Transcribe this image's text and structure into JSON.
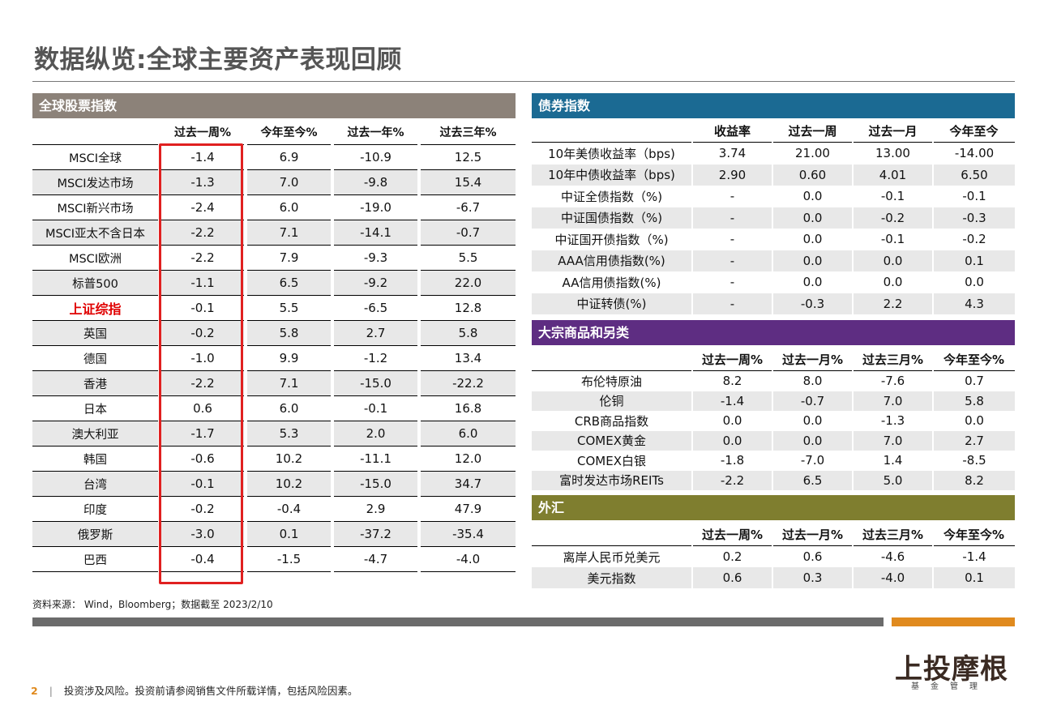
{
  "title": "数据纵览:全球主要资产表现回顾",
  "equity": {
    "header": "全球股票指数",
    "header_color": "#8c8279",
    "columns": [
      "过去一周%",
      "今年至今%",
      "过去一年%",
      "过去三年%"
    ],
    "rows": [
      {
        "name": "MSCI全球",
        "values": [
          "-1.4",
          "6.9",
          "-10.9",
          "12.5"
        ]
      },
      {
        "name": "MSCI发达市场",
        "values": [
          "-1.3",
          "7.0",
          "-9.8",
          "15.4"
        ]
      },
      {
        "name": "MSCI新兴市场",
        "values": [
          "-2.4",
          "6.0",
          "-19.0",
          "-6.7"
        ]
      },
      {
        "name": "MSCI亚太不含日本",
        "values": [
          "-2.2",
          "7.1",
          "-14.1",
          "-0.7"
        ]
      },
      {
        "name": "MSCI欧洲",
        "values": [
          "-2.2",
          "7.9",
          "-9.3",
          "5.5"
        ]
      },
      {
        "name": "标普500",
        "values": [
          "-1.1",
          "6.5",
          "-9.2",
          "22.0"
        ]
      },
      {
        "name": "上证综指",
        "values": [
          "-0.1",
          "5.5",
          "-6.5",
          "12.8"
        ]
      },
      {
        "name": "英国",
        "values": [
          "-0.2",
          "5.8",
          "2.7",
          "5.8"
        ]
      },
      {
        "name": "德国",
        "values": [
          "-1.0",
          "9.9",
          "-1.2",
          "13.4"
        ]
      },
      {
        "name": "香港",
        "values": [
          "-2.2",
          "7.1",
          "-15.0",
          "-22.2"
        ]
      },
      {
        "name": "日本",
        "values": [
          "0.6",
          "6.0",
          "-0.1",
          "16.8"
        ]
      },
      {
        "name": "澳大利亚",
        "values": [
          "-1.7",
          "5.3",
          "2.0",
          "6.0"
        ]
      },
      {
        "name": "韩国",
        "values": [
          "-0.6",
          "10.2",
          "-11.1",
          "12.0"
        ]
      },
      {
        "name": "台湾",
        "values": [
          "-0.1",
          "10.2",
          "-15.0",
          "34.7"
        ]
      },
      {
        "name": "印度",
        "values": [
          "-0.2",
          "-0.4",
          "2.9",
          "47.9"
        ]
      },
      {
        "name": "俄罗斯",
        "values": [
          "-3.0",
          "0.1",
          "-37.2",
          "-35.4"
        ]
      },
      {
        "name": "巴西",
        "values": [
          "-0.4",
          "-1.5",
          "-4.7",
          "-4.0"
        ]
      }
    ]
  },
  "bonds": {
    "header": "债券指数",
    "header_color": "#1b6a93",
    "columns": [
      "收益率",
      "过去一周",
      "过去一月",
      "今年至今"
    ],
    "rows": [
      {
        "name": "10年美债收益率（bps)",
        "values": [
          "3.74",
          "21.00",
          "13.00",
          "-14.00"
        ]
      },
      {
        "name": "10年中债收益率（bps)",
        "values": [
          "2.90",
          "0.60",
          "4.01",
          "6.50"
        ]
      },
      {
        "name": "中证全债指数（%)",
        "values": [
          "-",
          "0.0",
          "-0.1",
          "-0.1"
        ]
      },
      {
        "name": "中证国债指数（%)",
        "values": [
          "-",
          "0.0",
          "-0.2",
          "-0.3"
        ]
      },
      {
        "name": "中证国开债指数（%)",
        "values": [
          "-",
          "0.0",
          "-0.1",
          "-0.2"
        ]
      },
      {
        "name": "AAA信用债指数(%)",
        "values": [
          "-",
          "0.0",
          "0.0",
          "0.1"
        ]
      },
      {
        "name": "AA信用债指数(%)",
        "values": [
          "-",
          "0.0",
          "0.0",
          "0.0"
        ]
      },
      {
        "name": "中证转债(%)",
        "values": [
          "-",
          "-0.3",
          "2.2",
          "4.3"
        ]
      }
    ]
  },
  "commodities": {
    "header": "大宗商品和另类",
    "header_color": "#5e2d82",
    "columns": [
      "过去一周%",
      "过去一月%",
      "过去三月%",
      "今年至今%"
    ],
    "rows": [
      {
        "name": "布伦特原油",
        "values": [
          "8.2",
          "8.0",
          "-7.6",
          "0.7"
        ]
      },
      {
        "name": "伦铜",
        "values": [
          "-1.4",
          "-0.7",
          "7.0",
          "5.8"
        ]
      },
      {
        "name": "CRB商品指数",
        "values": [
          "0.0",
          "0.0",
          "-1.3",
          "0.0"
        ]
      },
      {
        "name": "COMEX黄金",
        "values": [
          "0.0",
          "0.0",
          "7.0",
          "2.7"
        ]
      },
      {
        "name": "COMEX白银",
        "values": [
          "-1.8",
          "-7.0",
          "1.4",
          "-8.5"
        ]
      },
      {
        "name": "富时发达市场REITs",
        "values": [
          "-2.2",
          "6.5",
          "5.0",
          "8.2"
        ]
      }
    ]
  },
  "fx": {
    "header": "外汇",
    "header_color": "#7f7e2f",
    "columns": [
      "过去一周%",
      "过去一月%",
      "过去三月%",
      "今年至今%"
    ],
    "rows": [
      {
        "name": "离岸人民币兑美元",
        "values": [
          "0.2",
          "0.6",
          "-4.6",
          "-1.4"
        ]
      },
      {
        "name": "美元指数",
        "values": [
          "0.6",
          "0.3",
          "-4.0",
          "0.1"
        ]
      }
    ]
  },
  "source": "资料来源： Wind，Bloomberg；数据截至 2023/2/10",
  "footer": {
    "page_number": "2",
    "separator": "|",
    "disclaimer": "投资涉及风险。投资前请参阅销售文件所载详情，包括风险因素。"
  },
  "logo": {
    "main": "上投摩根",
    "sub": "基金管理"
  }
}
